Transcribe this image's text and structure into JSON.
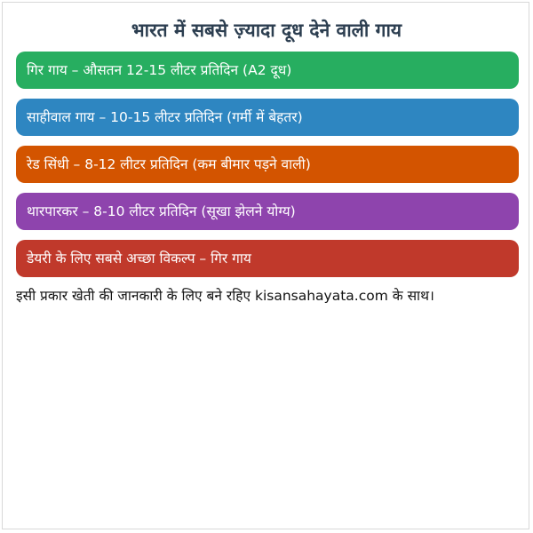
{
  "title": "भारत में सबसे ज़्यादा दूध देने वाली गाय",
  "cards": [
    {
      "text": "गिर गाय – औसतन 12-15 लीटर प्रतिदिन (A2 दूध)",
      "color": "#27ae60"
    },
    {
      "text": "साहीवाल गाय – 10-15 लीटर प्रतिदिन (गर्मी में बेहतर)",
      "color": "#2e86c1"
    },
    {
      "text": "रेड सिंधी – 8-12 लीटर प्रतिदिन (कम बीमार पड़ने वाली)",
      "color": "#d35400"
    },
    {
      "text": "थारपारकर – 8-10 लीटर प्रतिदिन (सूखा झेलने योग्य)",
      "color": "#8e44ad"
    },
    {
      "text": "डेयरी के लिए सबसे अच्छा विकल्प – गिर गाय",
      "color": "#c0392b"
    }
  ],
  "footer": "इसी प्रकार खेती की जानकारी के लिए बने रहिए kisansahayata.com के साथ।"
}
